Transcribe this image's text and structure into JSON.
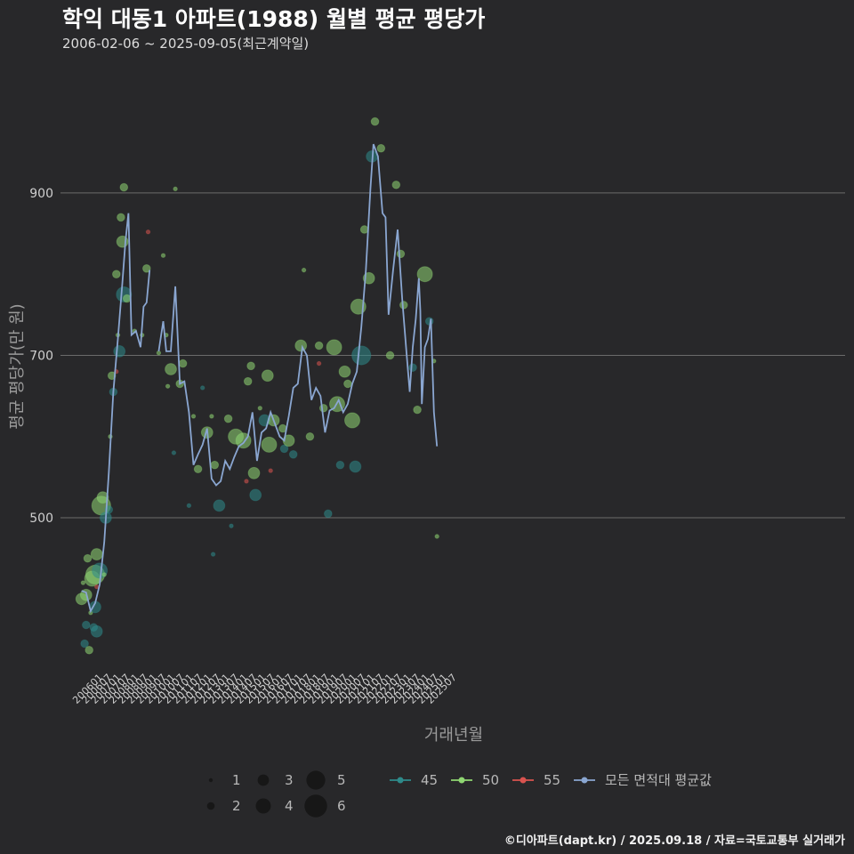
{
  "header": {
    "title": "학익 대동1 아파트(1988) 월별 평균 평당가",
    "subtitle": "2006-02-06 ~ 2025-09-05(최근계약일)"
  },
  "caption": "©디아파트(dapt.kr) / 2025.09.18 / 자료=국토교통부 실거래가",
  "colors": {
    "s45": "#2e8a8a",
    "s50": "#8fd672",
    "s55": "#d9534f",
    "avg": "#8aa6d1",
    "grid": "#6b6b6b",
    "bg": "#28282a"
  },
  "chart_data": {
    "type": "scatter",
    "xlabel": "거래년월",
    "ylabel": "평균 평당가(만 원)",
    "ylim": [
      305,
      1050
    ],
    "yticks": [
      500,
      700,
      900
    ],
    "xticks": [
      "200601",
      "200607",
      "200701",
      "200707",
      "200801",
      "200807",
      "200901",
      "200907",
      "201001",
      "201007",
      "201101",
      "201107",
      "201201",
      "201207",
      "201301",
      "201307",
      "201401",
      "201407",
      "201501",
      "201507",
      "201601",
      "201607",
      "201701",
      "201707",
      "201801",
      "201807",
      "201901",
      "201907",
      "202001",
      "202007",
      "202101",
      "202107",
      "202201",
      "202207",
      "202301",
      "202307",
      "202401",
      "202407",
      "202501",
      "202507"
    ],
    "size_legend": [
      "1",
      "2",
      "3",
      "4",
      "5",
      "6"
    ],
    "color_legend": [
      {
        "key": "s45",
        "label": "45"
      },
      {
        "key": "s50",
        "label": "50"
      },
      {
        "key": "s55",
        "label": "55"
      },
      {
        "key": "avg",
        "label": "모든 면적대 평균값"
      }
    ],
    "points": [
      {
        "area": "50",
        "date": "2006-02",
        "price": 400,
        "count": 3
      },
      {
        "area": "50",
        "date": "2006-03",
        "price": 420,
        "count": 1
      },
      {
        "area": "45",
        "date": "2006-04",
        "price": 345,
        "count": 2
      },
      {
        "area": "45",
        "date": "2006-05",
        "price": 368,
        "count": 2
      },
      {
        "area": "50",
        "date": "2006-05",
        "price": 405,
        "count": 3
      },
      {
        "area": "50",
        "date": "2006-06",
        "price": 450,
        "count": 2
      },
      {
        "area": "50",
        "date": "2006-07",
        "price": 337,
        "count": 2
      },
      {
        "area": "50",
        "date": "2006-08",
        "price": 383,
        "count": 1
      },
      {
        "area": "50",
        "date": "2006-09",
        "price": 425,
        "count": 4
      },
      {
        "area": "45",
        "date": "2006-10",
        "price": 365,
        "count": 2
      },
      {
        "area": "45",
        "date": "2006-11",
        "price": 390,
        "count": 3
      },
      {
        "area": "50",
        "date": "2006-11",
        "price": 430,
        "count": 5
      },
      {
        "area": "45",
        "date": "2006-12",
        "price": 360,
        "count": 3
      },
      {
        "area": "50",
        "date": "2006-12",
        "price": 455,
        "count": 3
      },
      {
        "area": "55",
        "date": "2006-12",
        "price": 415,
        "count": 1
      },
      {
        "area": "45",
        "date": "2007-02",
        "price": 435,
        "count": 4
      },
      {
        "area": "50",
        "date": "2007-03",
        "price": 515,
        "count": 5
      },
      {
        "area": "50",
        "date": "2007-04",
        "price": 525,
        "count": 3
      },
      {
        "area": "50",
        "date": "2007-05",
        "price": 430,
        "count": 1
      },
      {
        "area": "45",
        "date": "2007-06",
        "price": 500,
        "count": 3
      },
      {
        "area": "45",
        "date": "2007-08",
        "price": 510,
        "count": 2
      },
      {
        "area": "50",
        "date": "2007-09",
        "price": 600,
        "count": 1
      },
      {
        "area": "50",
        "date": "2007-10",
        "price": 675,
        "count": 2
      },
      {
        "area": "45",
        "date": "2007-11",
        "price": 655,
        "count": 2
      },
      {
        "area": "50",
        "date": "2008-01",
        "price": 800,
        "count": 2
      },
      {
        "area": "55",
        "date": "2008-01",
        "price": 680,
        "count": 1
      },
      {
        "area": "50",
        "date": "2008-02",
        "price": 725,
        "count": 1
      },
      {
        "area": "45",
        "date": "2008-03",
        "price": 705,
        "count": 3
      },
      {
        "area": "50",
        "date": "2008-04",
        "price": 870,
        "count": 2
      },
      {
        "area": "50",
        "date": "2008-05",
        "price": 840,
        "count": 3
      },
      {
        "area": "45",
        "date": "2008-06",
        "price": 775,
        "count": 4
      },
      {
        "area": "50",
        "date": "2008-06",
        "price": 907,
        "count": 2
      },
      {
        "area": "50",
        "date": "2008-08",
        "price": 770,
        "count": 2
      },
      {
        "area": "50",
        "date": "2009-01",
        "price": 730,
        "count": 1
      },
      {
        "area": "50",
        "date": "2009-06",
        "price": 725,
        "count": 1
      },
      {
        "area": "50",
        "date": "2009-09",
        "price": 807,
        "count": 2
      },
      {
        "area": "55",
        "date": "2009-10",
        "price": 852,
        "count": 1
      },
      {
        "area": "50",
        "date": "2010-05",
        "price": 703,
        "count": 1
      },
      {
        "area": "50",
        "date": "2010-08",
        "price": 823,
        "count": 1
      },
      {
        "area": "50",
        "date": "2010-10",
        "price": 725,
        "count": 1
      },
      {
        "area": "50",
        "date": "2010-11",
        "price": 662,
        "count": 1
      },
      {
        "area": "50",
        "date": "2011-01",
        "price": 683,
        "count": 3
      },
      {
        "area": "45",
        "date": "2011-03",
        "price": 580,
        "count": 1
      },
      {
        "area": "50",
        "date": "2011-04",
        "price": 905,
        "count": 1
      },
      {
        "area": "50",
        "date": "2011-07",
        "price": 665,
        "count": 2
      },
      {
        "area": "50",
        "date": "2011-09",
        "price": 690,
        "count": 2
      },
      {
        "area": "45",
        "date": "2012-01",
        "price": 515,
        "count": 1
      },
      {
        "area": "50",
        "date": "2012-04",
        "price": 625,
        "count": 1
      },
      {
        "area": "50",
        "date": "2012-07",
        "price": 560,
        "count": 2
      },
      {
        "area": "45",
        "date": "2012-10",
        "price": 660,
        "count": 1
      },
      {
        "area": "50",
        "date": "2013-01",
        "price": 605,
        "count": 3
      },
      {
        "area": "50",
        "date": "2013-04",
        "price": 625,
        "count": 1
      },
      {
        "area": "45",
        "date": "2013-05",
        "price": 455,
        "count": 1
      },
      {
        "area": "50",
        "date": "2013-06",
        "price": 565,
        "count": 2
      },
      {
        "area": "45",
        "date": "2013-09",
        "price": 515,
        "count": 3
      },
      {
        "area": "50",
        "date": "2014-03",
        "price": 622,
        "count": 2
      },
      {
        "area": "45",
        "date": "2014-05",
        "price": 490,
        "count": 1
      },
      {
        "area": "50",
        "date": "2014-08",
        "price": 600,
        "count": 4
      },
      {
        "area": "50",
        "date": "2015-01",
        "price": 595,
        "count": 4
      },
      {
        "area": "55",
        "date": "2015-03",
        "price": 545,
        "count": 1
      },
      {
        "area": "50",
        "date": "2015-04",
        "price": 668,
        "count": 2
      },
      {
        "area": "50",
        "date": "2015-06",
        "price": 687,
        "count": 2
      },
      {
        "area": "50",
        "date": "2015-08",
        "price": 555,
        "count": 3
      },
      {
        "area": "45",
        "date": "2015-09",
        "price": 528,
        "count": 3
      },
      {
        "area": "50",
        "date": "2015-12",
        "price": 635,
        "count": 1
      },
      {
        "area": "45",
        "date": "2016-03",
        "price": 620,
        "count": 3
      },
      {
        "area": "50",
        "date": "2016-05",
        "price": 675,
        "count": 3
      },
      {
        "area": "50",
        "date": "2016-06",
        "price": 590,
        "count": 4
      },
      {
        "area": "55",
        "date": "2016-07",
        "price": 558,
        "count": 1
      },
      {
        "area": "50",
        "date": "2016-09",
        "price": 620,
        "count": 3
      },
      {
        "area": "50",
        "date": "2017-03",
        "price": 610,
        "count": 2
      },
      {
        "area": "45",
        "date": "2017-04",
        "price": 585,
        "count": 2
      },
      {
        "area": "50",
        "date": "2017-07",
        "price": 595,
        "count": 3
      },
      {
        "area": "45",
        "date": "2017-10",
        "price": 578,
        "count": 2
      },
      {
        "area": "50",
        "date": "2018-03",
        "price": 712,
        "count": 3
      },
      {
        "area": "50",
        "date": "2018-05",
        "price": 805,
        "count": 1
      },
      {
        "area": "50",
        "date": "2018-09",
        "price": 600,
        "count": 2
      },
      {
        "area": "50",
        "date": "2019-03",
        "price": 712,
        "count": 2
      },
      {
        "area": "55",
        "date": "2019-03",
        "price": 690,
        "count": 1
      },
      {
        "area": "50",
        "date": "2019-06",
        "price": 635,
        "count": 2
      },
      {
        "area": "45",
        "date": "2019-09",
        "price": 505,
        "count": 2
      },
      {
        "area": "50",
        "date": "2020-01",
        "price": 710,
        "count": 4
      },
      {
        "area": "50",
        "date": "2020-03",
        "price": 640,
        "count": 4
      },
      {
        "area": "45",
        "date": "2020-05",
        "price": 565,
        "count": 2
      },
      {
        "area": "50",
        "date": "2020-08",
        "price": 680,
        "count": 3
      },
      {
        "area": "50",
        "date": "2020-10",
        "price": 665,
        "count": 2
      },
      {
        "area": "50",
        "date": "2021-01",
        "price": 620,
        "count": 4
      },
      {
        "area": "45",
        "date": "2021-03",
        "price": 563,
        "count": 3
      },
      {
        "area": "50",
        "date": "2021-05",
        "price": 760,
        "count": 4
      },
      {
        "area": "45",
        "date": "2021-07",
        "price": 700,
        "count": 5
      },
      {
        "area": "50",
        "date": "2021-09",
        "price": 855,
        "count": 2
      },
      {
        "area": "50",
        "date": "2021-12",
        "price": 795,
        "count": 3
      },
      {
        "area": "45",
        "date": "2022-02",
        "price": 945,
        "count": 3
      },
      {
        "area": "50",
        "date": "2022-04",
        "price": 988,
        "count": 2
      },
      {
        "area": "50",
        "date": "2022-08",
        "price": 955,
        "count": 2
      },
      {
        "area": "50",
        "date": "2023-02",
        "price": 700,
        "count": 2
      },
      {
        "area": "50",
        "date": "2023-06",
        "price": 910,
        "count": 2
      },
      {
        "area": "50",
        "date": "2023-09",
        "price": 825,
        "count": 2
      },
      {
        "area": "50",
        "date": "2023-11",
        "price": 762,
        "count": 2
      },
      {
        "area": "45",
        "date": "2024-05",
        "price": 685,
        "count": 2
      },
      {
        "area": "50",
        "date": "2024-08",
        "price": 633,
        "count": 2
      },
      {
        "area": "50",
        "date": "2025-01",
        "price": 800,
        "count": 4
      },
      {
        "area": "45",
        "date": "2025-04",
        "price": 742,
        "count": 2
      },
      {
        "area": "50",
        "date": "2025-07",
        "price": 693,
        "count": 1
      },
      {
        "area": "50",
        "date": "2025-09",
        "price": 477,
        "count": 1
      }
    ],
    "avg_series": [
      {
        "date": "2006-02",
        "price": 410
      },
      {
        "date": "2006-05",
        "price": 408
      },
      {
        "date": "2006-08",
        "price": 385
      },
      {
        "date": "2006-11",
        "price": 395
      },
      {
        "date": "2007-02",
        "price": 418
      },
      {
        "date": "2007-05",
        "price": 470
      },
      {
        "date": "2007-08",
        "price": 555
      },
      {
        "date": "2007-11",
        "price": 655
      },
      {
        "date": "2008-02",
        "price": 720
      },
      {
        "date": "2008-05",
        "price": 790
      },
      {
        "date": "2008-07",
        "price": 840
      },
      {
        "date": "2008-09",
        "price": 875
      },
      {
        "date": "2008-11",
        "price": 725
      },
      {
        "date": "2009-02",
        "price": 730
      },
      {
        "date": "2009-05",
        "price": 710
      },
      {
        "date": "2009-07",
        "price": 760
      },
      {
        "date": "2009-09",
        "price": 765
      },
      {
        "date": "2009-11",
        "price": 805
      },
      {
        "date": "2010-05",
        "price": 705
      },
      {
        "date": "2010-08",
        "price": 742
      },
      {
        "date": "2010-10",
        "price": 705
      },
      {
        "date": "2011-01",
        "price": 705
      },
      {
        "date": "2011-04",
        "price": 785
      },
      {
        "date": "2011-07",
        "price": 665
      },
      {
        "date": "2011-10",
        "price": 668
      },
      {
        "date": "2012-01",
        "price": 630
      },
      {
        "date": "2012-04",
        "price": 565
      },
      {
        "date": "2012-07",
        "price": 578
      },
      {
        "date": "2012-10",
        "price": 590
      },
      {
        "date": "2013-01",
        "price": 610
      },
      {
        "date": "2013-04",
        "price": 548
      },
      {
        "date": "2013-07",
        "price": 540
      },
      {
        "date": "2013-10",
        "price": 545
      },
      {
        "date": "2014-01",
        "price": 570
      },
      {
        "date": "2014-04",
        "price": 560
      },
      {
        "date": "2014-07",
        "price": 575
      },
      {
        "date": "2014-10",
        "price": 588
      },
      {
        "date": "2015-01",
        "price": 592
      },
      {
        "date": "2015-04",
        "price": 600
      },
      {
        "date": "2015-07",
        "price": 630
      },
      {
        "date": "2015-10",
        "price": 570
      },
      {
        "date": "2016-01",
        "price": 605
      },
      {
        "date": "2016-04",
        "price": 610
      },
      {
        "date": "2016-07",
        "price": 630
      },
      {
        "date": "2016-10",
        "price": 615
      },
      {
        "date": "2017-01",
        "price": 600
      },
      {
        "date": "2017-04",
        "price": 595
      },
      {
        "date": "2017-07",
        "price": 625
      },
      {
        "date": "2017-10",
        "price": 660
      },
      {
        "date": "2018-01",
        "price": 665
      },
      {
        "date": "2018-04",
        "price": 710
      },
      {
        "date": "2018-07",
        "price": 700
      },
      {
        "date": "2018-10",
        "price": 645
      },
      {
        "date": "2019-01",
        "price": 660
      },
      {
        "date": "2019-04",
        "price": 650
      },
      {
        "date": "2019-07",
        "price": 605
      },
      {
        "date": "2019-10",
        "price": 632
      },
      {
        "date": "2020-01",
        "price": 635
      },
      {
        "date": "2020-04",
        "price": 645
      },
      {
        "date": "2020-07",
        "price": 630
      },
      {
        "date": "2020-10",
        "price": 640
      },
      {
        "date": "2021-01",
        "price": 665
      },
      {
        "date": "2021-04",
        "price": 680
      },
      {
        "date": "2021-07",
        "price": 735
      },
      {
        "date": "2021-10",
        "price": 805
      },
      {
        "date": "2022-01",
        "price": 905
      },
      {
        "date": "2022-03",
        "price": 960
      },
      {
        "date": "2022-06",
        "price": 945
      },
      {
        "date": "2022-09",
        "price": 875
      },
      {
        "date": "2022-11",
        "price": 870
      },
      {
        "date": "2023-01",
        "price": 750
      },
      {
        "date": "2023-04",
        "price": 805
      },
      {
        "date": "2023-07",
        "price": 855
      },
      {
        "date": "2023-10",
        "price": 770
      },
      {
        "date": "2024-01",
        "price": 700
      },
      {
        "date": "2024-03",
        "price": 655
      },
      {
        "date": "2024-05",
        "price": 710
      },
      {
        "date": "2024-07",
        "price": 745
      },
      {
        "date": "2024-09",
        "price": 795
      },
      {
        "date": "2024-10",
        "price": 755
      },
      {
        "date": "2024-11",
        "price": 640
      },
      {
        "date": "2025-01",
        "price": 710
      },
      {
        "date": "2025-03",
        "price": 720
      },
      {
        "date": "2025-05",
        "price": 745
      },
      {
        "date": "2025-07",
        "price": 630
      },
      {
        "date": "2025-09",
        "price": 588
      }
    ]
  }
}
